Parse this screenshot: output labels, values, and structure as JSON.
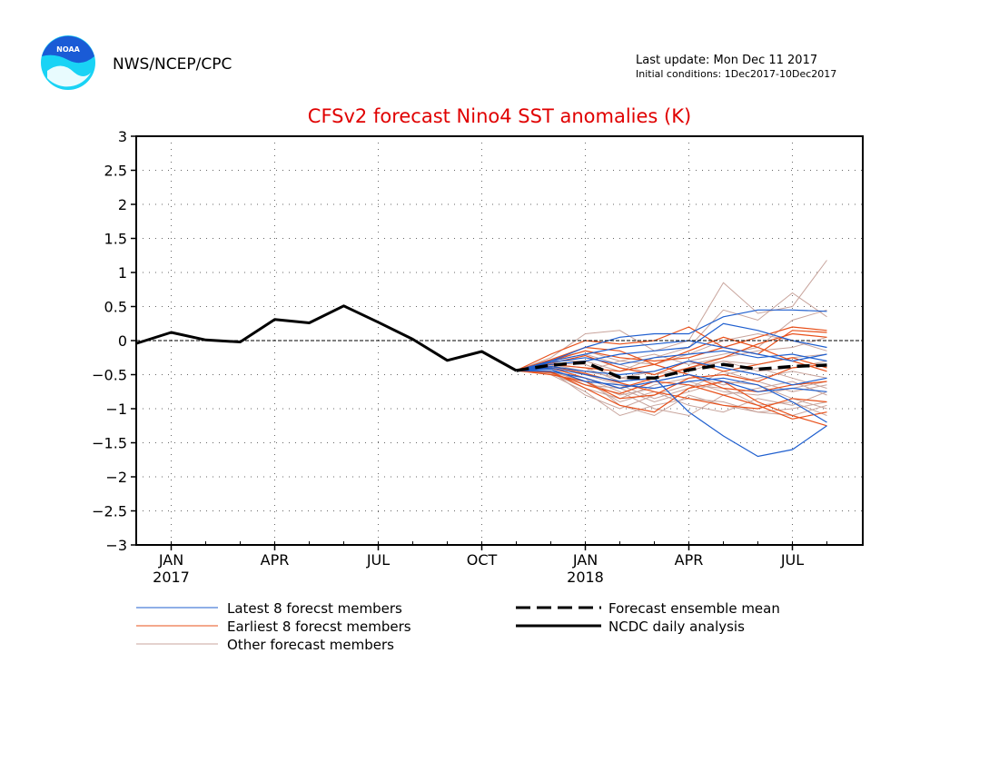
{
  "header": {
    "agency": "NWS/NCEP/CPC",
    "logo_text": "NOAA",
    "last_update": "Last update: Mon Dec 11 2017",
    "initial_conditions": "Initial conditions:  1Dec2017-10Dec2017"
  },
  "colors": {
    "title": "#e00000",
    "latest": "#1f5fcf",
    "earliest": "#e8501a",
    "other": "#c8a49c",
    "ensemble_mean": "#000000",
    "analysis": "#000000",
    "logo_blue": "#1a5bd6",
    "logo_cyan": "#19d3f5"
  },
  "chart_data": {
    "type": "line",
    "title": "CFSv2 forecast Nino4 SST anomalies (K)",
    "xlabel": "",
    "ylabel": "",
    "ylim": [
      -3,
      3
    ],
    "yticks": [
      3,
      2.5,
      2,
      1.5,
      1,
      0.5,
      0,
      -0.5,
      -1,
      -1.5,
      -2,
      -2.5,
      -3
    ],
    "ytick_labels": [
      "3",
      "2.5",
      "2",
      "1.5",
      "1",
      "0.5",
      "0",
      "−0.5",
      "−1",
      "−1.5",
      "−2",
      "−2.5",
      "−3"
    ],
    "x_months": [
      "Dec 2016",
      "Jan 2017",
      "Feb 2017",
      "Mar 2017",
      "Apr 2017",
      "May 2017",
      "Jun 2017",
      "Jul 2017",
      "Aug 2017",
      "Sep 2017",
      "Oct 2017",
      "Nov 2017",
      "Dec 2017",
      "Jan 2018",
      "Feb 2018",
      "Mar 2018",
      "Apr 2018",
      "May 2018",
      "Jun 2018",
      "Jul 2018",
      "Aug 2018"
    ],
    "xticks": [
      {
        "month": "Jan 2017",
        "label": "JAN",
        "year": "2017"
      },
      {
        "month": "Apr 2017",
        "label": "APR",
        "year": ""
      },
      {
        "month": "Jul 2017",
        "label": "JUL",
        "year": ""
      },
      {
        "month": "Oct 2017",
        "label": "OCT",
        "year": ""
      },
      {
        "month": "Jan 2018",
        "label": "JAN",
        "year": "2018"
      },
      {
        "month": "Apr 2018",
        "label": "APR",
        "year": ""
      },
      {
        "month": "Jul 2018",
        "label": "JUL",
        "year": ""
      }
    ],
    "grid": true,
    "legend_position": "bottom",
    "legend": {
      "latest": "Latest 8 forecst members",
      "earliest": "Earliest 8 forecst members",
      "other": "Other forecast members",
      "ensemble_mean": "Forecast ensemble mean",
      "analysis": "NCDC daily analysis"
    },
    "analysis": {
      "x": [
        "Dec 2016",
        "Jan 2017",
        "Feb 2017",
        "Mar 2017",
        "Apr 2017",
        "May 2017",
        "Jun 2017",
        "Jul 2017",
        "Aug 2017",
        "Sep 2017",
        "Oct 2017",
        "Nov 2017"
      ],
      "y": [
        -0.04,
        0.12,
        0.01,
        -0.02,
        0.31,
        0.26,
        0.51,
        0.27,
        0.02,
        -0.29,
        -0.16,
        -0.44
      ]
    },
    "ensemble_mean": {
      "x": [
        "Nov 2017",
        "Dec 2017",
        "Jan 2018",
        "Feb 2018",
        "Mar 2018",
        "Apr 2018",
        "May 2018",
        "Jun 2018",
        "Jul 2018",
        "Aug 2018"
      ],
      "y": [
        -0.44,
        -0.36,
        -0.32,
        -0.54,
        -0.55,
        -0.43,
        -0.35,
        -0.42,
        -0.38,
        -0.36
      ]
    },
    "latest_members": {
      "x": [
        "Nov 2017",
        "Dec 2017",
        "Jan 2018",
        "Feb 2018",
        "Mar 2018",
        "Apr 2018",
        "May 2018",
        "Jun 2018",
        "Jul 2018",
        "Aug 2018"
      ],
      "series": [
        [
          -0.44,
          -0.3,
          -0.1,
          0.05,
          0.1,
          0.1,
          0.35,
          0.45,
          0.45,
          0.43
        ],
        [
          -0.44,
          -0.4,
          -0.5,
          -0.6,
          -0.55,
          -1.05,
          -1.4,
          -1.7,
          -1.6,
          -1.25
        ],
        [
          -0.44,
          -0.35,
          -0.3,
          -0.2,
          -0.15,
          -0.1,
          0.25,
          0.15,
          0.0,
          -0.1
        ],
        [
          -0.44,
          -0.45,
          -0.55,
          -0.7,
          -0.6,
          -0.5,
          -0.6,
          -0.75,
          -0.7,
          -0.75
        ],
        [
          -0.44,
          -0.3,
          -0.2,
          -0.1,
          -0.05,
          0.0,
          -0.1,
          -0.2,
          -0.3,
          -0.2
        ],
        [
          -0.44,
          -0.38,
          -0.45,
          -0.5,
          -0.45,
          -0.3,
          -0.4,
          -0.5,
          -0.65,
          -0.55
        ],
        [
          -0.44,
          -0.32,
          -0.25,
          -0.35,
          -0.25,
          -0.2,
          -0.15,
          -0.25,
          -0.2,
          -0.3
        ],
        [
          -0.44,
          -0.42,
          -0.6,
          -0.65,
          -0.7,
          -0.6,
          -0.55,
          -0.65,
          -0.9,
          -1.2
        ]
      ]
    },
    "earliest_members": {
      "x": [
        "Nov 2017",
        "Dec 2017",
        "Jan 2018",
        "Feb 2018",
        "Mar 2018",
        "Apr 2018",
        "May 2018",
        "Jun 2018",
        "Jul 2018",
        "Aug 2018"
      ],
      "series": [
        [
          -0.44,
          -0.2,
          0.0,
          -0.05,
          0.0,
          0.2,
          -0.1,
          -0.2,
          0.15,
          0.12
        ],
        [
          -0.44,
          -0.45,
          -0.7,
          -0.95,
          -1.05,
          -0.7,
          -0.6,
          -0.9,
          -1.1,
          -1.25
        ],
        [
          -0.44,
          -0.3,
          -0.15,
          -0.25,
          -0.3,
          -0.25,
          -0.1,
          0.05,
          0.2,
          0.15
        ],
        [
          -0.44,
          -0.5,
          -0.6,
          -0.85,
          -0.8,
          -0.55,
          -0.5,
          -0.6,
          -0.4,
          -0.35
        ],
        [
          -0.44,
          -0.35,
          -0.4,
          -0.45,
          -0.35,
          -0.15,
          0.05,
          -0.1,
          -0.3,
          -0.45
        ],
        [
          -0.44,
          -0.28,
          -0.1,
          -0.15,
          -0.35,
          -0.5,
          -0.7,
          -0.75,
          -0.65,
          -0.6
        ],
        [
          -0.44,
          -0.4,
          -0.55,
          -0.7,
          -0.55,
          -0.4,
          -0.25,
          -0.05,
          0.1,
          0.05
        ],
        [
          -0.44,
          -0.38,
          -0.48,
          -0.62,
          -0.75,
          -0.85,
          -0.95,
          -1.0,
          -0.85,
          -0.9
        ],
        [
          -0.44,
          -0.33,
          -0.22,
          -0.4,
          -0.5,
          -0.3,
          -0.45,
          -0.35,
          -0.25,
          -0.4
        ],
        [
          -0.44,
          -0.47,
          -0.65,
          -0.78,
          -0.6,
          -0.65,
          -0.8,
          -0.95,
          -1.15,
          -1.05
        ]
      ]
    },
    "other_members": {
      "x": [
        "Nov 2017",
        "Dec 2017",
        "Jan 2018",
        "Feb 2018",
        "Mar 2018",
        "Apr 2018",
        "May 2018",
        "Jun 2018",
        "Jul 2018",
        "Aug 2018"
      ],
      "series": [
        [
          -0.44,
          -0.25,
          0.1,
          0.15,
          -0.15,
          0.0,
          0.85,
          0.4,
          0.5,
          1.18
        ],
        [
          -0.44,
          -0.4,
          -0.55,
          -0.95,
          -1.1,
          -0.8,
          -0.95,
          -1.05,
          -1.0,
          -0.9
        ],
        [
          -0.44,
          -0.3,
          -0.3,
          -0.45,
          -0.25,
          -0.1,
          0.45,
          0.3,
          0.7,
          0.35
        ],
        [
          -0.44,
          -0.45,
          -0.6,
          -0.8,
          -0.7,
          -0.6,
          -0.75,
          -0.8,
          -0.7,
          -0.6
        ],
        [
          -0.44,
          -0.35,
          -0.4,
          -0.6,
          -0.55,
          -0.45,
          -0.3,
          -0.35,
          -0.25,
          -0.2
        ],
        [
          -0.44,
          -0.5,
          -0.75,
          -1.1,
          -0.95,
          -0.85,
          -0.9,
          -1.05,
          -1.1,
          -0.95
        ],
        [
          -0.44,
          -0.38,
          -0.45,
          -0.3,
          -0.35,
          -0.2,
          0.0,
          0.1,
          0.0,
          -0.15
        ],
        [
          -0.44,
          -0.42,
          -0.65,
          -0.7,
          -0.9,
          -0.75,
          -0.6,
          -0.65,
          -0.85,
          -1.0
        ],
        [
          -0.44,
          -0.33,
          -0.35,
          -0.55,
          -0.45,
          -0.3,
          -0.2,
          -0.1,
          0.3,
          0.45
        ],
        [
          -0.44,
          -0.48,
          -0.7,
          -0.85,
          -0.65,
          -0.55,
          -0.5,
          -0.4,
          -0.55,
          -0.7
        ],
        [
          -0.44,
          -0.36,
          -0.5,
          -0.65,
          -0.85,
          -0.7,
          -0.45,
          -0.6,
          -0.75,
          -0.65
        ],
        [
          -0.44,
          -0.4,
          -0.55,
          -0.75,
          -1.0,
          -1.1,
          -0.8,
          -0.7,
          -0.6,
          -0.8
        ],
        [
          -0.44,
          -0.3,
          -0.2,
          -0.35,
          -0.5,
          -0.4,
          -0.3,
          -0.45,
          -0.4,
          -0.3
        ],
        [
          -0.44,
          -0.45,
          -0.8,
          -1.0,
          -0.8,
          -0.65,
          -0.7,
          -0.95,
          -0.9,
          -1.1
        ],
        [
          -0.44,
          -0.35,
          -0.45,
          -0.55,
          -0.6,
          -0.5,
          -0.65,
          -0.55,
          -0.45,
          -0.55
        ],
        [
          -0.44,
          -0.28,
          -0.15,
          -0.3,
          -0.2,
          -0.35,
          -0.25,
          -0.15,
          -0.1,
          0.05
        ],
        [
          -0.44,
          -0.46,
          -0.6,
          -0.9,
          -0.75,
          -0.95,
          -1.05,
          -0.85,
          -0.95,
          -0.75
        ]
      ]
    }
  }
}
